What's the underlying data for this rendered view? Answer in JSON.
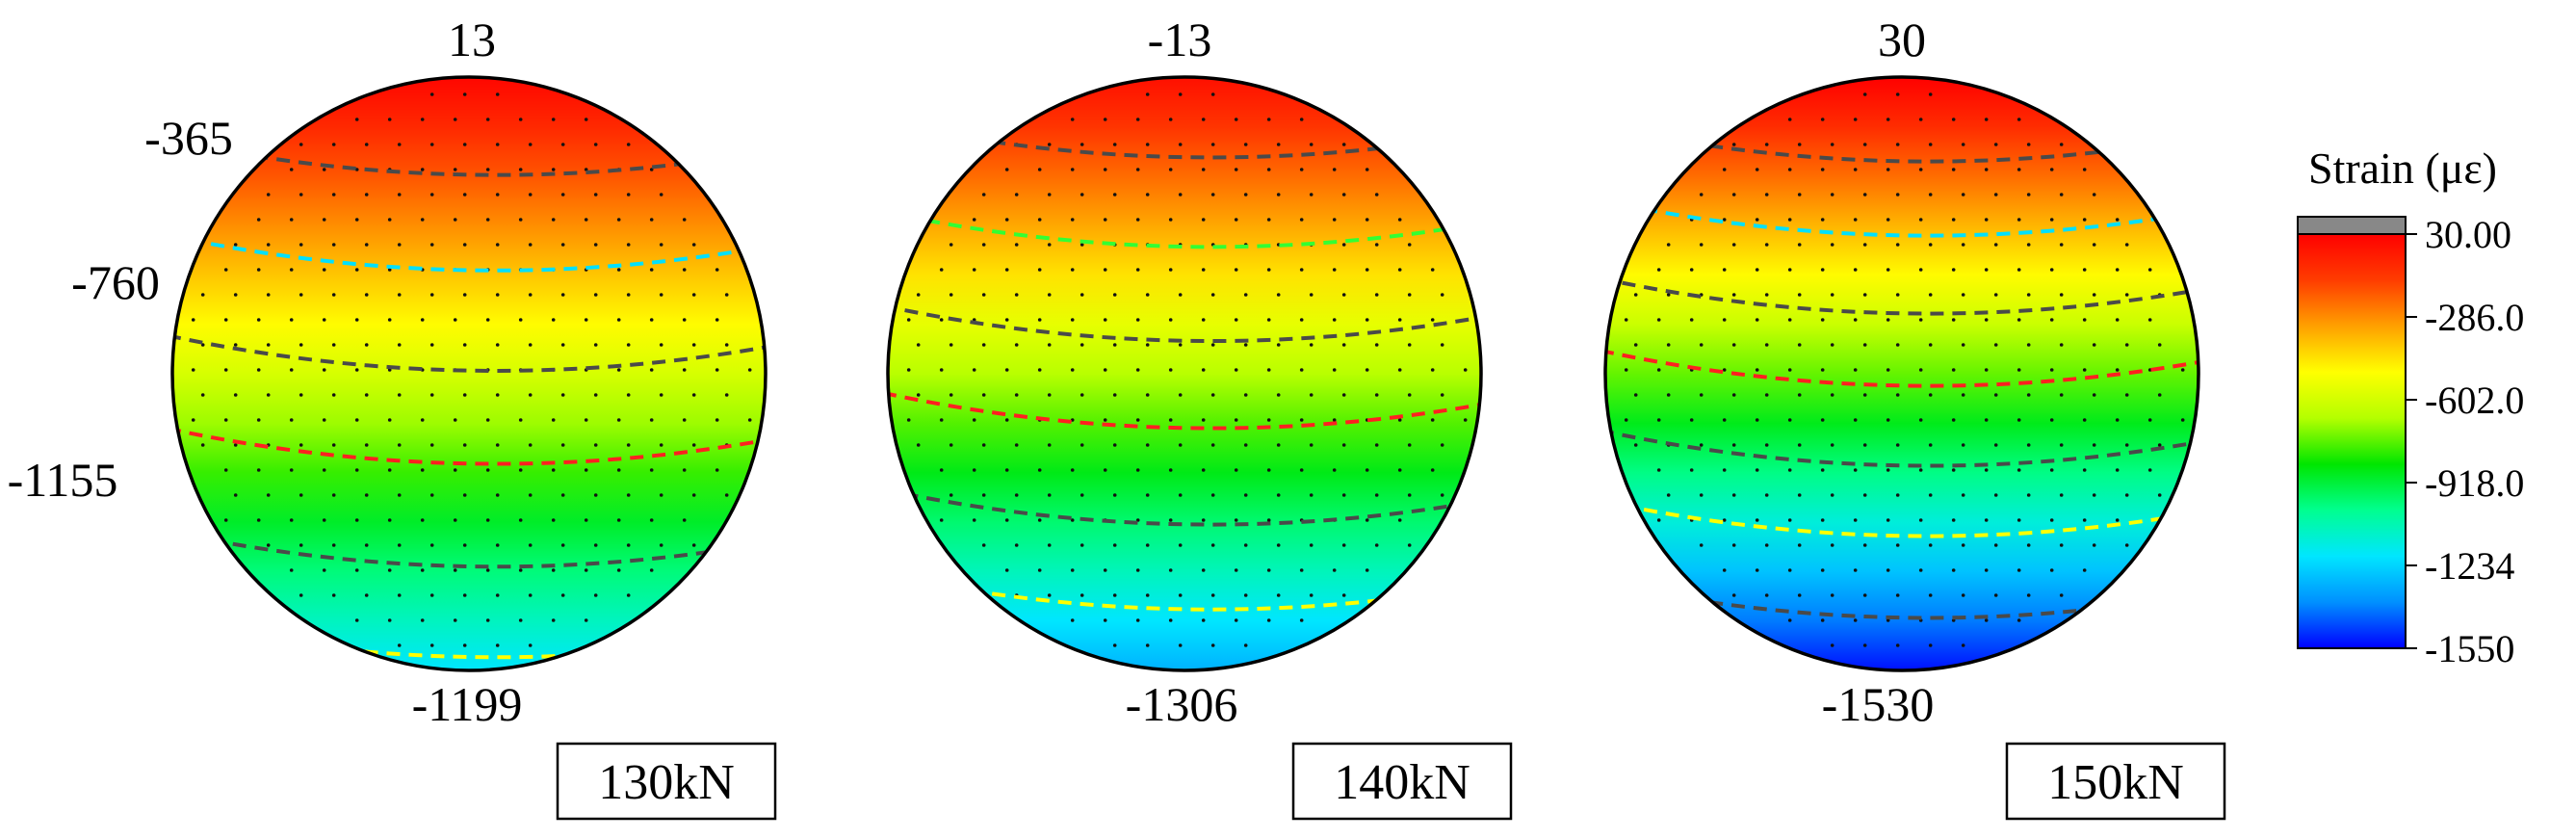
{
  "chart_data": {
    "type": "heatmap",
    "colorbar": {
      "title": "Strain (με)",
      "ticks": [
        "30.00",
        "-286.0",
        "-602.0",
        "-918.0",
        "-1234",
        "-1550"
      ],
      "range": [
        -1550,
        30
      ],
      "colors": [
        "#0000ff",
        "#0090ff",
        "#00e6ff",
        "#00ff90",
        "#00e600",
        "#b4ff00",
        "#ffff00",
        "#ffa000",
        "#ff3c00",
        "#ff0000"
      ],
      "top_color": "#888888"
    },
    "panels": [
      {
        "load": "130kN",
        "top": "13",
        "bottom": "-1199",
        "left_labels": [
          "-365",
          "-760",
          "-1155"
        ],
        "top_value": 13,
        "bottom_value": -1199,
        "contours": [
          {
            "value": -365,
            "color": "#00e0ff"
          },
          {
            "value": -760,
            "color": "#ff2020"
          },
          {
            "value": -1155,
            "color": "#ffff00"
          }
        ]
      },
      {
        "load": "140kN",
        "top": "-13",
        "bottom": "-1306",
        "left_labels": [],
        "top_value": -13,
        "bottom_value": -1306,
        "contours": [
          {
            "value": -365,
            "color": "#33ff33"
          },
          {
            "value": -760,
            "color": "#ff2020"
          },
          {
            "value": -1155,
            "color": "#ffff00"
          }
        ]
      },
      {
        "load": "150kN",
        "top": "30",
        "bottom": "-1530",
        "left_labels": [],
        "top_value": 30,
        "bottom_value": -1530,
        "contours": [
          {
            "value": -365,
            "color": "#00e0ff"
          },
          {
            "value": -760,
            "color": "#ff2020"
          },
          {
            "value": -1155,
            "color": "#ffff00"
          }
        ]
      }
    ]
  }
}
